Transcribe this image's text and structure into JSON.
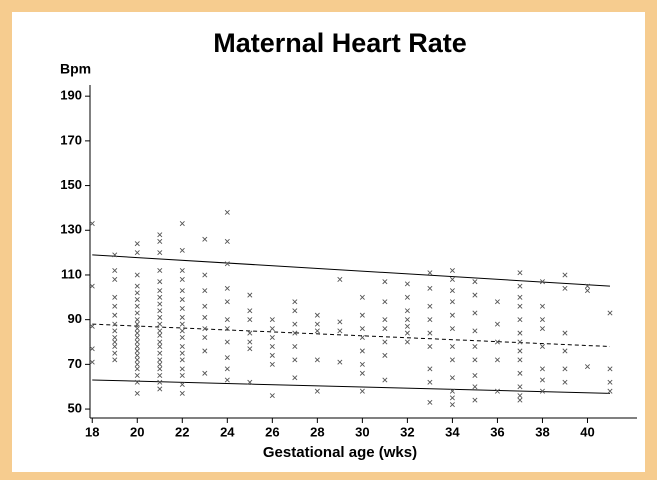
{
  "chart_data": {
    "type": "scatter",
    "title": "Maternal Heart Rate",
    "ylabel": "Bpm",
    "xlabel": "Gestational age (wks)",
    "xlim": [
      17.9,
      42.2
    ],
    "ylim": [
      46,
      195
    ],
    "xticks": [
      18,
      20,
      22,
      24,
      26,
      28,
      30,
      32,
      34,
      36,
      38,
      40
    ],
    "yticks": [
      50,
      70,
      90,
      110,
      130,
      150,
      170,
      190
    ],
    "series": [
      {
        "color": "#555555",
        "marker": "x",
        "points": [
          [
            18,
            133
          ],
          [
            18,
            105
          ],
          [
            18,
            87
          ],
          [
            18,
            77
          ],
          [
            18,
            71
          ],
          [
            19,
            119
          ],
          [
            19,
            112
          ],
          [
            19,
            108
          ],
          [
            19,
            100
          ],
          [
            19,
            96
          ],
          [
            19,
            92
          ],
          [
            19,
            88
          ],
          [
            19,
            85
          ],
          [
            19,
            82
          ],
          [
            19,
            80
          ],
          [
            19,
            78
          ],
          [
            19,
            75
          ],
          [
            19,
            72
          ],
          [
            20,
            124
          ],
          [
            20,
            120
          ],
          [
            20,
            110
          ],
          [
            20,
            105
          ],
          [
            20,
            102
          ],
          [
            20,
            99
          ],
          [
            20,
            96
          ],
          [
            20,
            93
          ],
          [
            20,
            90
          ],
          [
            20,
            88
          ],
          [
            20,
            86
          ],
          [
            20,
            84
          ],
          [
            20,
            82
          ],
          [
            20,
            80
          ],
          [
            20,
            78
          ],
          [
            20,
            76
          ],
          [
            20,
            74
          ],
          [
            20,
            72
          ],
          [
            20,
            70
          ],
          [
            20,
            68
          ],
          [
            20,
            65
          ],
          [
            20,
            62
          ],
          [
            20,
            57
          ],
          [
            21,
            128
          ],
          [
            21,
            125
          ],
          [
            21,
            120
          ],
          [
            21,
            112
          ],
          [
            21,
            107
          ],
          [
            21,
            103
          ],
          [
            21,
            100
          ],
          [
            21,
            97
          ],
          [
            21,
            94
          ],
          [
            21,
            91
          ],
          [
            21,
            88
          ],
          [
            21,
            85
          ],
          [
            21,
            83
          ],
          [
            21,
            80
          ],
          [
            21,
            78
          ],
          [
            21,
            75
          ],
          [
            21,
            72
          ],
          [
            21,
            70
          ],
          [
            21,
            68
          ],
          [
            21,
            65
          ],
          [
            21,
            62
          ],
          [
            21,
            59
          ],
          [
            22,
            133
          ],
          [
            22,
            121
          ],
          [
            22,
            112
          ],
          [
            22,
            108
          ],
          [
            22,
            103
          ],
          [
            22,
            99
          ],
          [
            22,
            95
          ],
          [
            22,
            91
          ],
          [
            22,
            88
          ],
          [
            22,
            85
          ],
          [
            22,
            82
          ],
          [
            22,
            78
          ],
          [
            22,
            75
          ],
          [
            22,
            72
          ],
          [
            22,
            68
          ],
          [
            22,
            65
          ],
          [
            22,
            61
          ],
          [
            22,
            57
          ],
          [
            23,
            126
          ],
          [
            23,
            110
          ],
          [
            23,
            103
          ],
          [
            23,
            96
          ],
          [
            23,
            91
          ],
          [
            23,
            86
          ],
          [
            23,
            82
          ],
          [
            23,
            76
          ],
          [
            23,
            66
          ],
          [
            24,
            138
          ],
          [
            24,
            125
          ],
          [
            24,
            115
          ],
          [
            24,
            104
          ],
          [
            24,
            98
          ],
          [
            24,
            90
          ],
          [
            24,
            86
          ],
          [
            24,
            80
          ],
          [
            24,
            73
          ],
          [
            24,
            68
          ],
          [
            24,
            63
          ],
          [
            25,
            101
          ],
          [
            25,
            94
          ],
          [
            25,
            90
          ],
          [
            25,
            84
          ],
          [
            25,
            80
          ],
          [
            25,
            77
          ],
          [
            25,
            62
          ],
          [
            26,
            90
          ],
          [
            26,
            86
          ],
          [
            26,
            82
          ],
          [
            26,
            78
          ],
          [
            26,
            74
          ],
          [
            26,
            70
          ],
          [
            26,
            56
          ],
          [
            27,
            98
          ],
          [
            27,
            94
          ],
          [
            27,
            88
          ],
          [
            27,
            84
          ],
          [
            27,
            78
          ],
          [
            27,
            72
          ],
          [
            27,
            64
          ],
          [
            28,
            92
          ],
          [
            28,
            88
          ],
          [
            28,
            85
          ],
          [
            28,
            72
          ],
          [
            28,
            58
          ],
          [
            29,
            108
          ],
          [
            29,
            89
          ],
          [
            29,
            85
          ],
          [
            29,
            71
          ],
          [
            30,
            100
          ],
          [
            30,
            92
          ],
          [
            30,
            86
          ],
          [
            30,
            82
          ],
          [
            30,
            76
          ],
          [
            30,
            70
          ],
          [
            30,
            66
          ],
          [
            30,
            58
          ],
          [
            31,
            107
          ],
          [
            31,
            98
          ],
          [
            31,
            90
          ],
          [
            31,
            86
          ],
          [
            31,
            80
          ],
          [
            31,
            74
          ],
          [
            31,
            63
          ],
          [
            32,
            106
          ],
          [
            32,
            100
          ],
          [
            32,
            94
          ],
          [
            32,
            90
          ],
          [
            32,
            87
          ],
          [
            32,
            84
          ],
          [
            32,
            80
          ],
          [
            33,
            111
          ],
          [
            33,
            104
          ],
          [
            33,
            96
          ],
          [
            33,
            90
          ],
          [
            33,
            84
          ],
          [
            33,
            78
          ],
          [
            33,
            68
          ],
          [
            33,
            62
          ],
          [
            33,
            53
          ],
          [
            34,
            112
          ],
          [
            34,
            108
          ],
          [
            34,
            103
          ],
          [
            34,
            98
          ],
          [
            34,
            92
          ],
          [
            34,
            86
          ],
          [
            34,
            78
          ],
          [
            34,
            72
          ],
          [
            34,
            64
          ],
          [
            34,
            58
          ],
          [
            34,
            55
          ],
          [
            34,
            52
          ],
          [
            35,
            107
          ],
          [
            35,
            101
          ],
          [
            35,
            93
          ],
          [
            35,
            85
          ],
          [
            35,
            78
          ],
          [
            35,
            72
          ],
          [
            35,
            65
          ],
          [
            35,
            60
          ],
          [
            35,
            54
          ],
          [
            36,
            98
          ],
          [
            36,
            88
          ],
          [
            36,
            80
          ],
          [
            36,
            72
          ],
          [
            36,
            58
          ],
          [
            37,
            111
          ],
          [
            37,
            105
          ],
          [
            37,
            100
          ],
          [
            37,
            96
          ],
          [
            37,
            90
          ],
          [
            37,
            84
          ],
          [
            37,
            80
          ],
          [
            37,
            76
          ],
          [
            37,
            72
          ],
          [
            37,
            66
          ],
          [
            37,
            60
          ],
          [
            37,
            56
          ],
          [
            37,
            54
          ],
          [
            38,
            107
          ],
          [
            38,
            96
          ],
          [
            38,
            90
          ],
          [
            38,
            86
          ],
          [
            38,
            78
          ],
          [
            38,
            68
          ],
          [
            38,
            63
          ],
          [
            38,
            58
          ],
          [
            39,
            110
          ],
          [
            39,
            104
          ],
          [
            39,
            84
          ],
          [
            39,
            76
          ],
          [
            39,
            68
          ],
          [
            39,
            62
          ],
          [
            40,
            105
          ],
          [
            40,
            103
          ],
          [
            40,
            69
          ],
          [
            41,
            93
          ],
          [
            41,
            68
          ],
          [
            41,
            62
          ],
          [
            41,
            58
          ]
        ]
      }
    ],
    "lines": [
      {
        "x": [
          18,
          41
        ],
        "y": [
          119,
          105
        ],
        "dash": false
      },
      {
        "x": [
          18,
          41
        ],
        "y": [
          88,
          78
        ],
        "dash": true
      },
      {
        "x": [
          18,
          41
        ],
        "y": [
          63,
          57
        ],
        "dash": false
      }
    ]
  }
}
